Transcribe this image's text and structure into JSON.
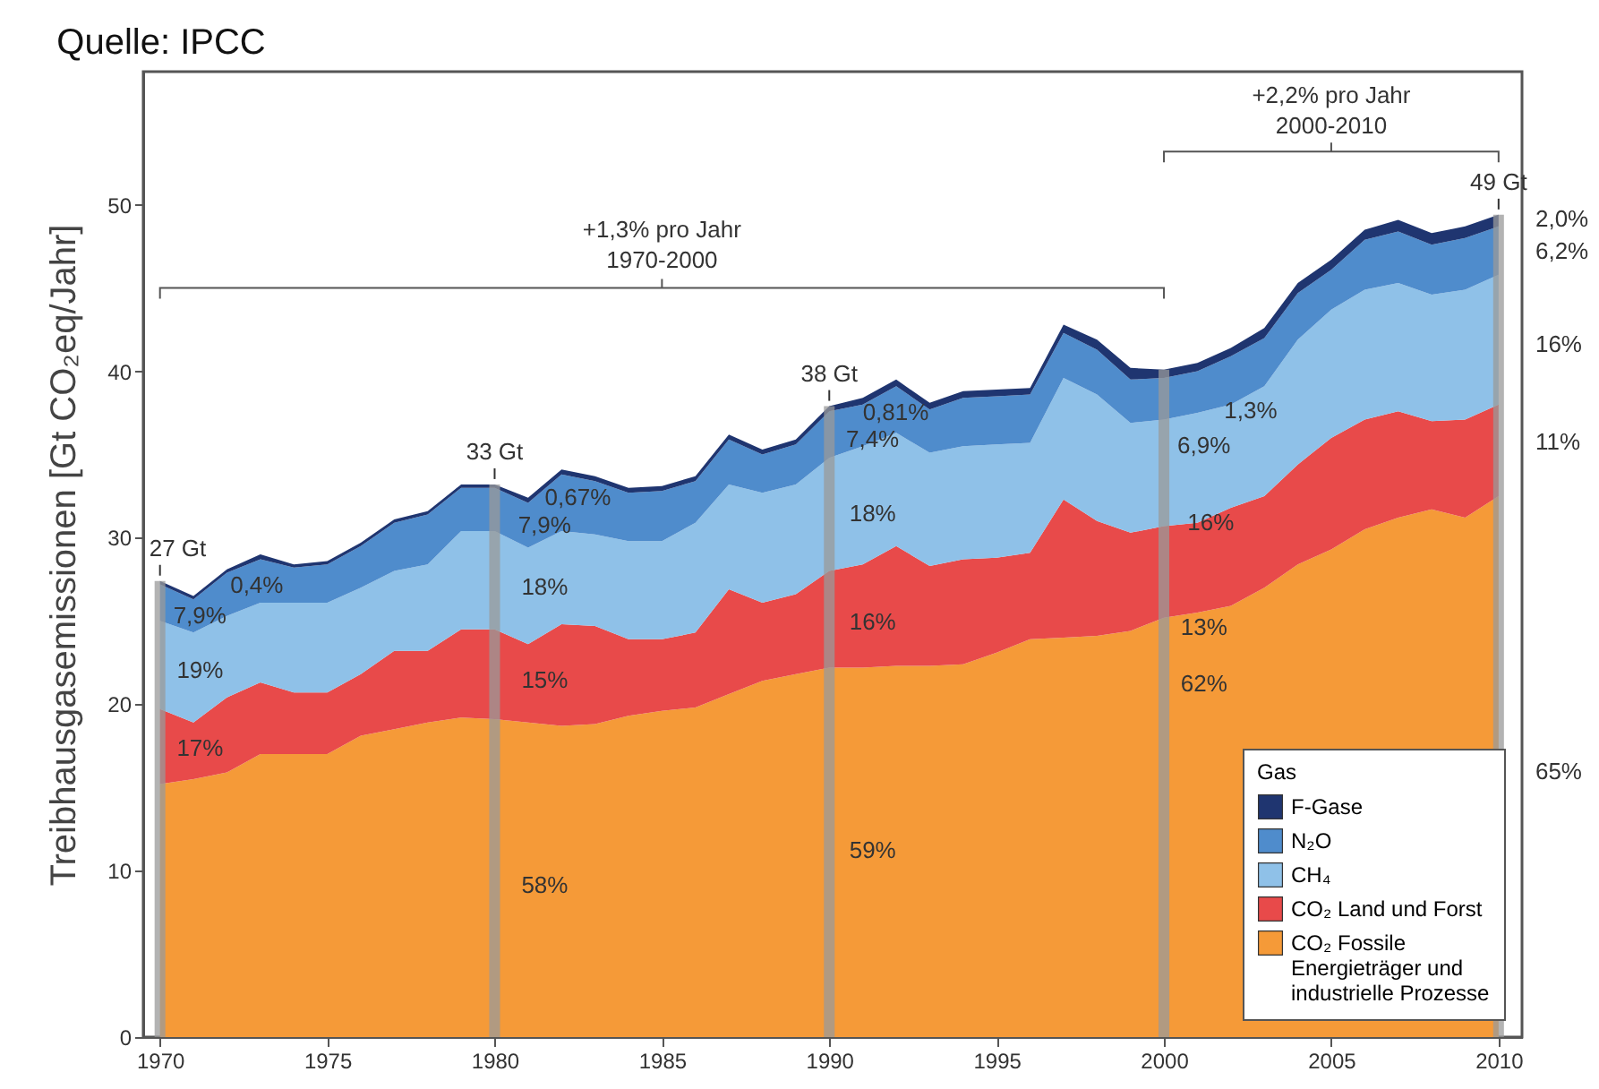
{
  "chart_data": {
    "type": "area",
    "title": "Quelle: IPCC",
    "ylabel": "Treibhausgasemissionen [Gt CO₂eq/Jahr]",
    "legend_title": "Gas",
    "legend": "bottom right",
    "grid": false,
    "stacked": true,
    "x": [
      1970,
      1971,
      1972,
      1973,
      1974,
      1975,
      1976,
      1977,
      1978,
      1979,
      1980,
      1981,
      1982,
      1983,
      1984,
      1985,
      1986,
      1987,
      1988,
      1989,
      1990,
      1991,
      1992,
      1993,
      1994,
      1995,
      1996,
      1997,
      1998,
      1999,
      2000,
      2001,
      2002,
      2003,
      2004,
      2005,
      2006,
      2007,
      2008,
      2009,
      2010
    ],
    "xlim": [
      1969.5,
      2010.7
    ],
    "xticks": [
      1970,
      1975,
      1980,
      1985,
      1990,
      1995,
      2000,
      2005,
      2010
    ],
    "ylim": [
      0,
      58
    ],
    "yticks": [
      0,
      10,
      20,
      30,
      40,
      50
    ],
    "series": [
      {
        "name": "CO₂ Fossile Energieträger und industrielle Prozesse",
        "color": "#f59a38",
        "values": [
          15.2,
          15.5,
          15.9,
          17.0,
          17.0,
          17.0,
          18.1,
          18.5,
          18.9,
          19.2,
          19.1,
          18.9,
          18.7,
          18.8,
          19.3,
          19.6,
          19.8,
          20.6,
          21.4,
          21.8,
          22.2,
          22.2,
          22.3,
          22.3,
          22.4,
          23.1,
          23.9,
          24.0,
          24.1,
          24.4,
          25.2,
          25.5,
          25.9,
          27.0,
          28.4,
          29.3,
          30.5,
          31.2,
          31.7,
          31.2,
          32.5
        ]
      },
      {
        "name": "CO₂ Land und Forst",
        "color": "#e84a4a",
        "values": [
          4.5,
          3.4,
          4.5,
          4.3,
          3.7,
          3.7,
          3.7,
          4.7,
          4.3,
          5.3,
          5.4,
          4.7,
          6.1,
          5.9,
          4.6,
          4.3,
          4.5,
          6.3,
          4.7,
          4.8,
          5.8,
          6.2,
          7.2,
          6.0,
          6.3,
          5.7,
          5.2,
          8.3,
          6.9,
          5.9,
          5.5,
          5.4,
          5.9,
          5.5,
          6.0,
          6.7,
          6.6,
          6.4,
          5.3,
          5.9,
          5.5
        ]
      },
      {
        "name": "CH₄",
        "color": "#8fc1e8",
        "values": [
          5.3,
          5.4,
          4.9,
          4.8,
          5.4,
          5.4,
          5.2,
          4.8,
          5.2,
          5.9,
          5.9,
          5.8,
          5.6,
          5.5,
          5.9,
          5.9,
          6.6,
          6.3,
          6.6,
          6.6,
          6.8,
          7.1,
          6.8,
          6.8,
          6.8,
          6.8,
          6.6,
          7.3,
          7.6,
          6.6,
          6.4,
          6.6,
          6.2,
          6.6,
          7.5,
          7.7,
          7.8,
          7.7,
          7.6,
          7.8,
          7.8
        ]
      },
      {
        "name": "N₂O",
        "color": "#4f8ccc",
        "values": [
          2.2,
          2.0,
          2.6,
          2.6,
          2.1,
          2.3,
          2.5,
          2.9,
          3.0,
          2.6,
          2.6,
          2.7,
          3.4,
          3.2,
          2.9,
          3.0,
          2.5,
          2.7,
          2.3,
          2.4,
          2.8,
          2.5,
          2.8,
          2.6,
          2.9,
          2.9,
          2.9,
          2.7,
          2.7,
          2.6,
          2.5,
          2.5,
          2.9,
          2.9,
          2.8,
          2.4,
          3.0,
          3.1,
          3.0,
          3.1,
          2.9
        ]
      },
      {
        "name": "F-Gase",
        "color": "#1f3570",
        "values": [
          0.2,
          0.2,
          0.2,
          0.3,
          0.2,
          0.2,
          0.2,
          0.2,
          0.2,
          0.2,
          0.2,
          0.3,
          0.3,
          0.3,
          0.3,
          0.3,
          0.3,
          0.3,
          0.3,
          0.3,
          0.3,
          0.4,
          0.4,
          0.4,
          0.4,
          0.4,
          0.4,
          0.5,
          0.6,
          0.7,
          0.5,
          0.5,
          0.5,
          0.6,
          0.6,
          0.6,
          0.6,
          0.7,
          0.7,
          0.7,
          0.7
        ]
      }
    ],
    "ref_lines": [
      {
        "axis": "x",
        "value": 1970,
        "label": "27 Gt",
        "color": "#9a9a9a"
      },
      {
        "axis": "x",
        "value": 1980,
        "label": "33 Gt",
        "color": "#9a9a9a"
      },
      {
        "axis": "x",
        "value": 1990,
        "label": "38 Gt",
        "color": "#9a9a9a"
      },
      {
        "axis": "x",
        "value": 2000,
        "label": null,
        "color": "#9a9a9a"
      },
      {
        "axis": "x",
        "value": 2010,
        "label": "49 Gt",
        "color": "#9a9a9a"
      }
    ],
    "annotations": [
      "0,4%",
      "7,9%",
      "19%",
      "17%",
      "0,67%",
      "7,9%",
      "18%",
      "15%",
      "58%",
      "0,81%",
      "7,4%",
      "18%",
      "16%",
      "59%",
      "1,3%",
      "6,9%",
      "16%",
      "13%",
      "62%",
      "2,0%",
      "6,2%",
      "16%",
      "11%",
      "65%",
      "+1,3% pro Jahr\n1970-2000",
      "+2,2% pro Jahr\n2000-2010"
    ]
  }
}
